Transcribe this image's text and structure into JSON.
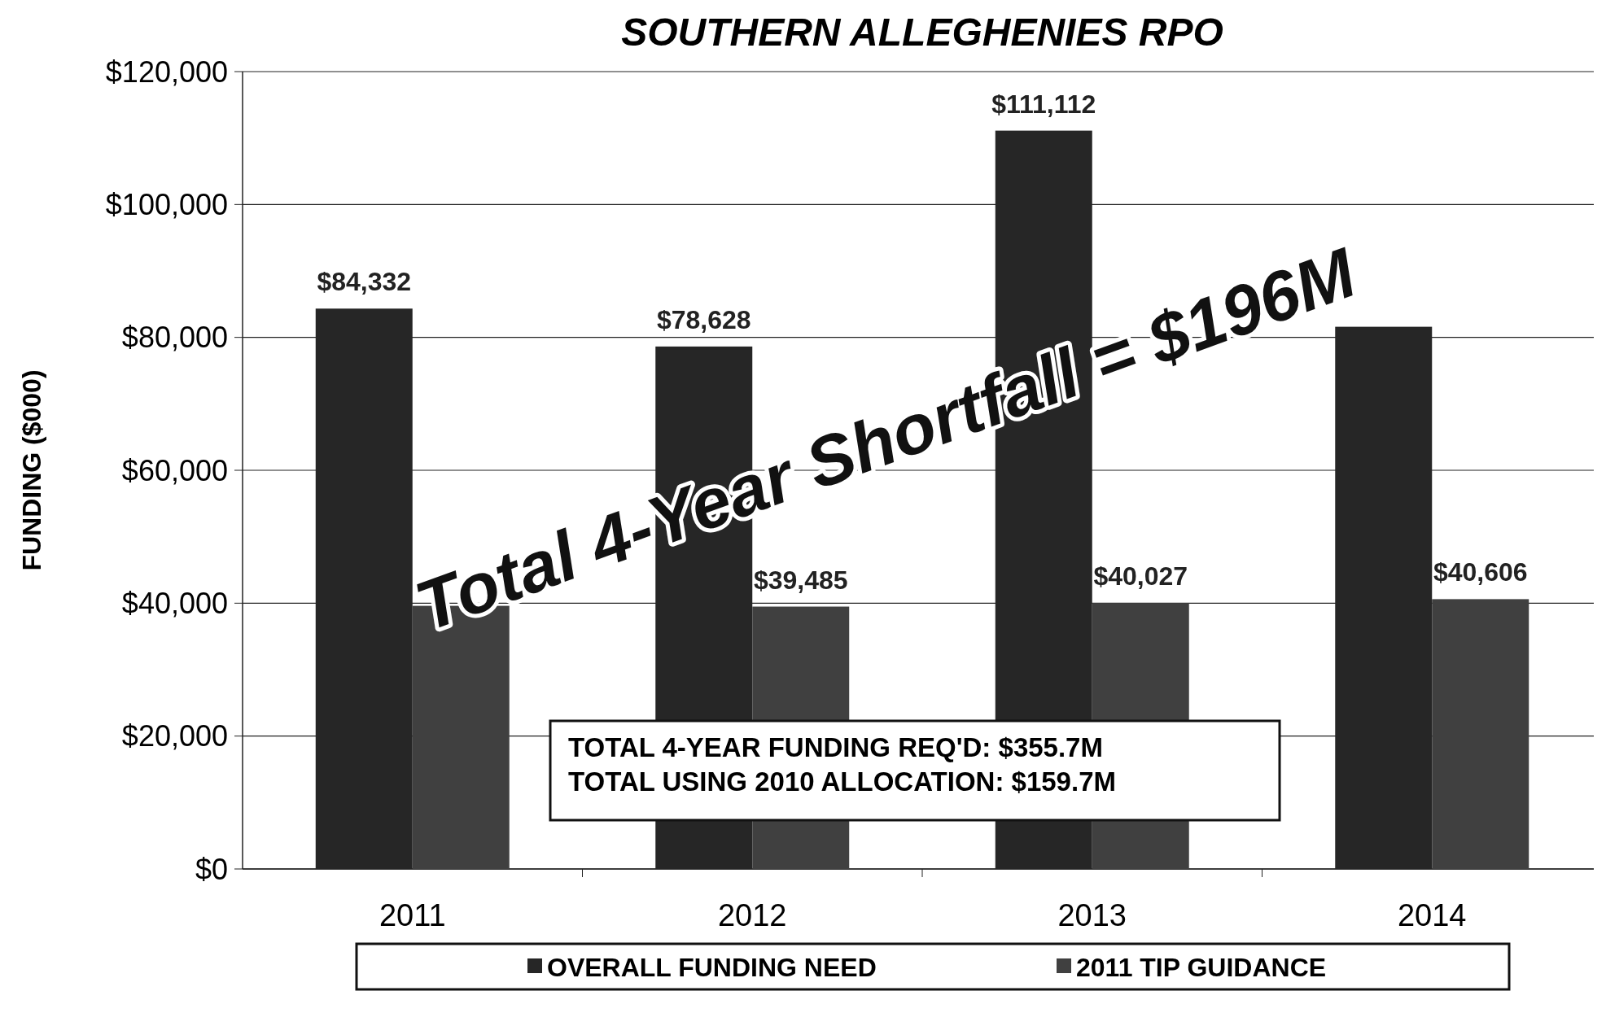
{
  "chart_data": {
    "type": "bar",
    "title": "SOUTHERN ALLEGHENIES RPO",
    "ylabel": "FUNDING ($000)",
    "categories": [
      "2011",
      "2012",
      "2013",
      "2014"
    ],
    "series": [
      {
        "name": "OVERALL FUNDING NEED",
        "color": "#262626",
        "values": [
          84332,
          78628,
          111112,
          81600
        ],
        "value_labels": [
          "$84,332",
          "$78,628",
          "$111,112",
          null
        ]
      },
      {
        "name": "2011 TIP GUIDANCE",
        "color": "#404040",
        "values": [
          39600,
          39485,
          40027,
          40606
        ],
        "value_labels": [
          null,
          "$39,485",
          "$40,027",
          "$40,606"
        ]
      }
    ],
    "ylim": [
      0,
      120000
    ],
    "yticks": [
      {
        "value": 0,
        "label": "$0"
      },
      {
        "value": 20000,
        "label": "$20,000"
      },
      {
        "value": 40000,
        "label": "$40,000"
      },
      {
        "value": 60000,
        "label": "$60,000"
      },
      {
        "value": 80000,
        "label": "$80,000"
      },
      {
        "value": 100000,
        "label": "$100,000"
      },
      {
        "value": 120000,
        "label": "$120,000"
      }
    ],
    "grid": "y",
    "legend": "bottom",
    "annotations": [
      "Total 4-Year Shortfall = $196M",
      "TOTAL 4-YEAR FUNDING REQ'D: $355.7M",
      "TOTAL USING 2010 ALLOCATION: $159.7M"
    ]
  }
}
